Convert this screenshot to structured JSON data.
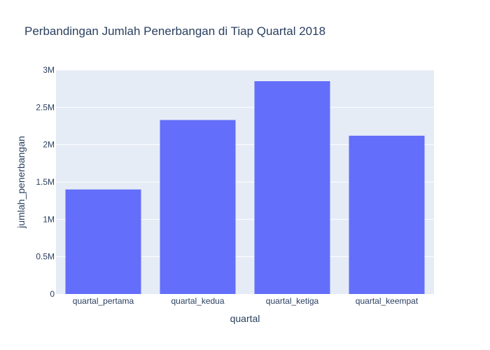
{
  "chart_data": {
    "type": "bar",
    "title": "Perbandingan Jumlah Penerbangan di Tiap Quartal 2018",
    "xlabel": "quartal",
    "ylabel": "jumlah_penerbangan",
    "categories": [
      "quartal_pertama",
      "quartal_kedua",
      "quartal_ketiga",
      "quartal_keempat"
    ],
    "values": [
      1400000,
      2330000,
      2850000,
      2120000
    ],
    "ylim": [
      0,
      3000000
    ],
    "yticks": [
      0,
      500000,
      1000000,
      1500000,
      2000000,
      2500000,
      3000000
    ],
    "ytick_labels": [
      "0",
      "0.5M",
      "1M",
      "1.5M",
      "2M",
      "2.5M",
      "3M"
    ],
    "grid": true,
    "colors": {
      "bar": "#636efa",
      "plot_bg": "#e5ecf6",
      "grid": "#ffffff",
      "text": "#2a3f5f"
    }
  }
}
